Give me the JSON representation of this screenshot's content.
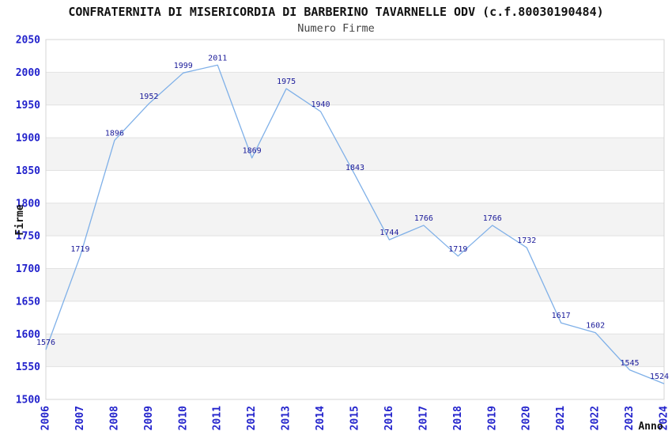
{
  "chart_data": {
    "type": "line",
    "title": "CONFRATERNITA DI MISERICORDIA DI BARBERINO TAVARNELLE ODV (c.f.80030190484)",
    "subtitle": "Numero Firme",
    "xlabel": "Anno",
    "ylabel": "Firme",
    "x": [
      "2006",
      "2007",
      "2008",
      "2009",
      "2010",
      "2011",
      "2012",
      "2013",
      "2014",
      "2015",
      "2016",
      "2017",
      "2018",
      "2019",
      "2020",
      "2021",
      "2022",
      "2023",
      "2024"
    ],
    "series": [
      {
        "name": "Numero Firme",
        "values": [
          1576,
          1719,
          1896,
          1952,
          1999,
          2011,
          1869,
          1975,
          1940,
          1843,
          1744,
          1766,
          1719,
          1766,
          1732,
          1617,
          1602,
          1545,
          1524
        ]
      }
    ],
    "data_labels_visible": true,
    "ylim": [
      1500,
      2050
    ],
    "ytick_step": 50,
    "grid": "horizontal-alternating-bands",
    "legend": "none",
    "colors": {
      "line": "#7fb0e8",
      "point_label": "#1a1a99",
      "tick_label": "#2323cc",
      "title": "#111111",
      "subtitle": "#444444",
      "axis_title": "#111111",
      "band": "#f3f3f3",
      "gridline": "#e2e2e2",
      "plot_border": "#d4d4d4",
      "background": "#ffffff"
    }
  }
}
